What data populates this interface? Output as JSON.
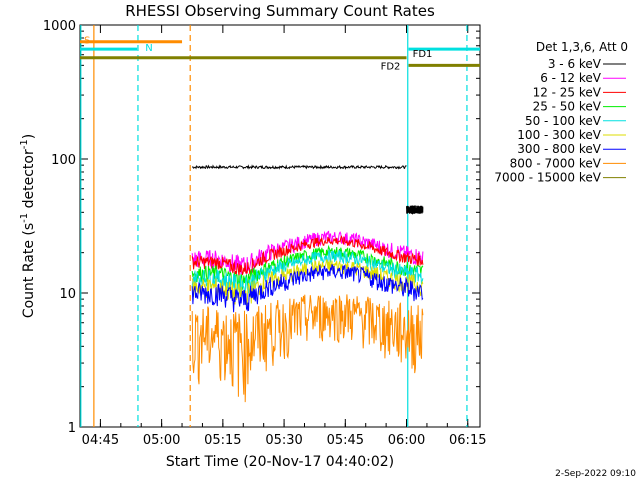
{
  "chart_data": {
    "type": "line",
    "title": "RHESSI Observing Summary Count Rates",
    "xlabel": "Start Time (20-Nov-17 04:40:02)",
    "ylabel_main": "Count Rate (s",
    "ylabel_sup1": "-1",
    "ylabel_mid": " detector",
    "ylabel_sup2": "-1",
    "ylabel_end": ")",
    "yscale": "log",
    "ylim": [
      1,
      1000
    ],
    "xlim_minutes": [
      0,
      98
    ],
    "x_ticks": [
      {
        "t": 5,
        "label": "04:45"
      },
      {
        "t": 20,
        "label": "05:00"
      },
      {
        "t": 35,
        "label": "05:15"
      },
      {
        "t": 50,
        "label": "05:30"
      },
      {
        "t": 65,
        "label": "05:45"
      },
      {
        "t": 80,
        "label": "06:00"
      },
      {
        "t": 95,
        "label": "06:15"
      }
    ],
    "y_ticks": [
      {
        "v": 1,
        "label": "1"
      },
      {
        "v": 10,
        "label": "10"
      },
      {
        "v": 100,
        "label": "100"
      },
      {
        "v": 1000,
        "label": "1000"
      }
    ],
    "legend_title": "Det 1,3,6, Att 0",
    "series": [
      {
        "name": "3 - 6 keV",
        "color": "#000000",
        "segments": [
          [
            27.5,
            80,
            87,
            2
          ],
          [
            80,
            84,
            42,
            3
          ]
        ]
      },
      {
        "name": "6 - 12 keV",
        "color": "#ff00ff",
        "segments": [
          [
            27.5,
            84,
            18,
            3
          ]
        ]
      },
      {
        "name": "12 - 25 keV",
        "color": "#ff0000",
        "segments": [
          [
            27.5,
            84,
            17,
            2
          ]
        ]
      },
      {
        "name": "25 - 50 keV",
        "color": "#00ee00",
        "segments": [
          [
            27.5,
            84,
            14,
            2
          ]
        ]
      },
      {
        "name": "50 - 100 keV",
        "color": "#00e0e0",
        "segments": [
          [
            27.5,
            84,
            13,
            2
          ]
        ]
      },
      {
        "name": "100 - 300 keV",
        "color": "#dddd00",
        "segments": [
          [
            27.5,
            84,
            11,
            2
          ]
        ]
      },
      {
        "name": "300 - 800 keV",
        "color": "#0000ff",
        "segments": [
          [
            27.5,
            84,
            10,
            2
          ]
        ]
      },
      {
        "name": "800 - 7000 keV",
        "color": "#ff8c00",
        "segments": [
          [
            27.5,
            84,
            5,
            3
          ]
        ]
      },
      {
        "name": "7000 - 15000 keV",
        "color": "#808000",
        "segments": []
      }
    ],
    "flags": [
      {
        "label": "S",
        "color": "#ff8c00",
        "t0": 0,
        "t1": 25,
        "y": 750,
        "label_t": 0.5,
        "label_side": "right"
      },
      {
        "label": "N",
        "color": "#00e0e0",
        "t0": 0,
        "t1": 14,
        "y": 660,
        "label_t": 15.5,
        "label_side": "right"
      },
      {
        "label": "FD2",
        "color": "#808000",
        "t0": 0,
        "t1": 80,
        "y": 570,
        "label_t": 79,
        "label_side": "left"
      },
      {
        "label": "FD1",
        "color": "#00e0e0",
        "t0": 80.5,
        "t1": 98,
        "y": 660,
        "label_t": 81,
        "label_side": "right"
      },
      {
        "label": "",
        "color": "#808000",
        "t0": 80.5,
        "t1": 98,
        "y": 500,
        "label_t": 0,
        "label_side": "right"
      }
    ],
    "vlines": [
      {
        "t": 0.2,
        "color": "#00e0e0",
        "dash": false
      },
      {
        "t": 3.4,
        "color": "#ff8c00",
        "dash": false
      },
      {
        "t": 14.2,
        "color": "#00e0e0",
        "dash": true
      },
      {
        "t": 27.0,
        "color": "#ff8c00",
        "dash": true
      },
      {
        "t": 80.3,
        "color": "#00e0e0",
        "dash": false
      },
      {
        "t": 94.8,
        "color": "#00e0e0",
        "dash": true
      }
    ],
    "footer_date": "2-Sep-2022 09:10"
  }
}
